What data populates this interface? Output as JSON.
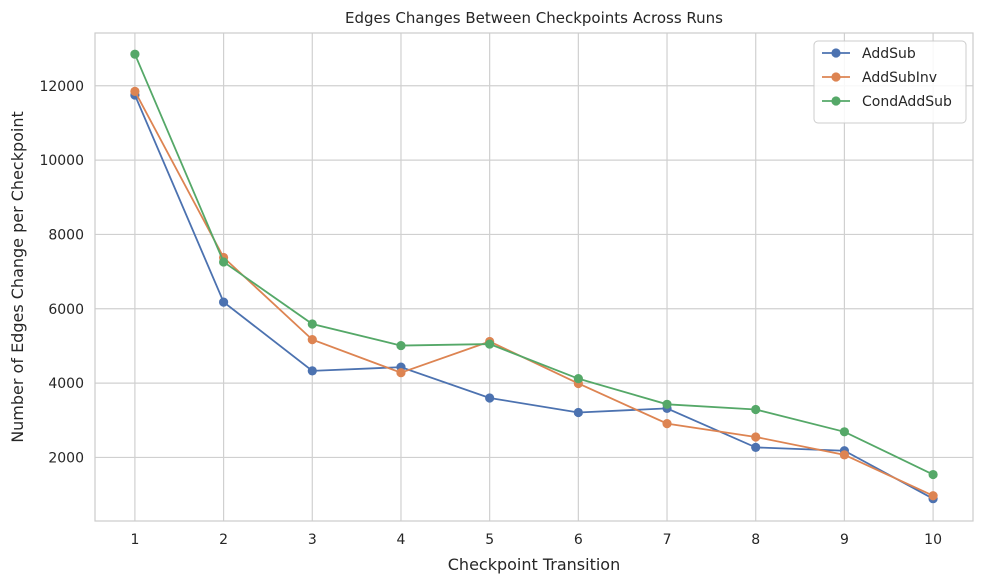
{
  "chart_data": {
    "type": "line",
    "title": "Edges Changes Between Checkpoints Across Runs",
    "xlabel": "Checkpoint Transition",
    "ylabel": "Number of Edges Change per Checkpoint",
    "x": [
      1,
      2,
      3,
      4,
      5,
      6,
      7,
      8,
      9,
      10
    ],
    "xlim": [
      0.55,
      10.45
    ],
    "ylim": [
      290,
      13420
    ],
    "yticks": [
      2000,
      4000,
      6000,
      8000,
      10000,
      12000
    ],
    "grid": true,
    "legend_position": "top-right",
    "series": [
      {
        "name": "AddSub",
        "color": "#4c72b0",
        "values": [
          11750,
          6180,
          4330,
          4430,
          3600,
          3210,
          3320,
          2270,
          2180,
          890
        ]
      },
      {
        "name": "AddSubInv",
        "color": "#dd8452",
        "values": [
          11850,
          7380,
          5170,
          4280,
          5120,
          3990,
          2910,
          2550,
          2070,
          970
        ]
      },
      {
        "name": "CondAddSub",
        "color": "#55a868",
        "values": [
          12850,
          7260,
          5590,
          5010,
          5050,
          4120,
          3430,
          3290,
          2690,
          1540
        ]
      }
    ]
  }
}
